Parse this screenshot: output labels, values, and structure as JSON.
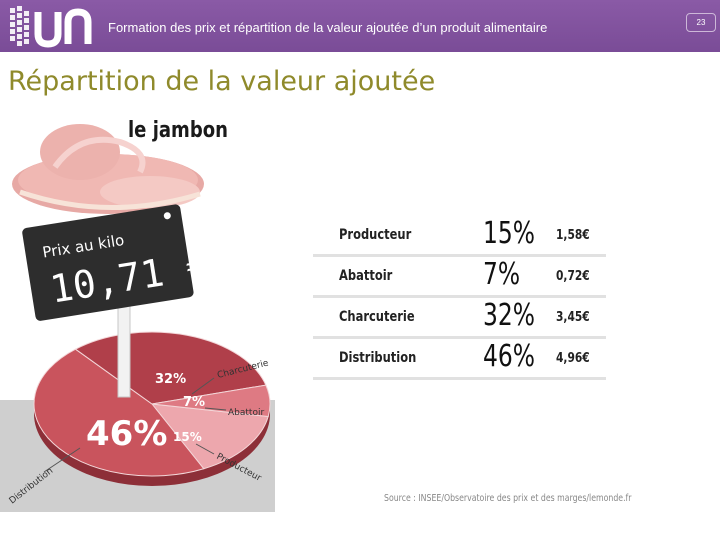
{
  "header": {
    "title": "Formation des prix et répartition de la valeur ajoutée d’un produit alimentaire",
    "slide_number": "23"
  },
  "section_title": "Répartition de la valeur ajoutée",
  "graphic": {
    "product_title": "le jambon",
    "price_tag": {
      "label": "Prix au kilo",
      "price": "10,71 €"
    },
    "pie": {
      "slices": [
        {
          "name": "Distribution",
          "percent_label": "46%",
          "value": 46,
          "color": "#c9545d"
        },
        {
          "name": "Charcuterie",
          "percent_label": "32%",
          "value": 32,
          "color": "#b03f4a"
        },
        {
          "name": "Abattoir",
          "percent_label": "7%",
          "value": 7,
          "color": "#de7a83"
        },
        {
          "name": "Producteur",
          "percent_label": "15%",
          "value": 15,
          "color": "#eda7ad"
        }
      ]
    }
  },
  "table": {
    "rows": [
      {
        "label": "Producteur",
        "percent": "15%",
        "euro": "1,58€"
      },
      {
        "label": "Abattoir",
        "percent": "7%",
        "euro": "0,72€"
      },
      {
        "label": "Charcuterie",
        "percent": "32%",
        "euro": "3,45€"
      },
      {
        "label": "Distribution",
        "percent": "46%",
        "euro": "4,96€"
      }
    ]
  },
  "source": "Source : INSEE/Observatoire des prix et des marges/lemonde.fr",
  "colors": {
    "header_purple": "#7a4c97",
    "title_olive": "#8f8a2b"
  }
}
